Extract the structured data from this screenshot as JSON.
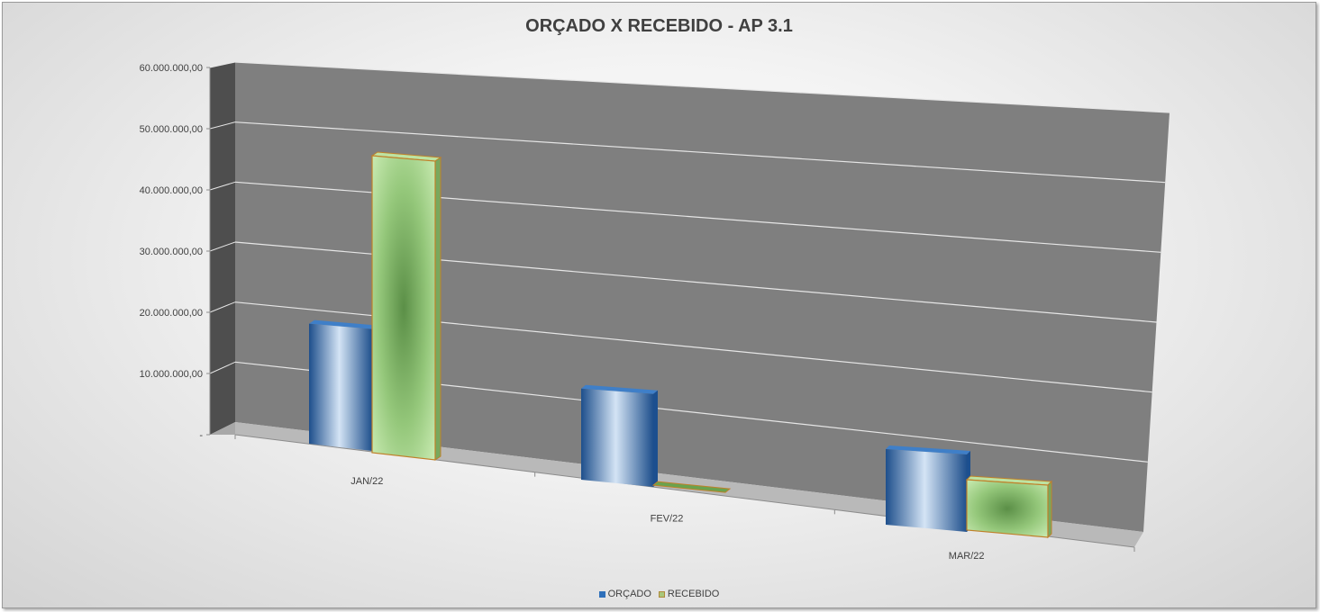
{
  "chart_data": {
    "type": "bar",
    "title": "ORÇADO X RECEBIDO - AP 3.1",
    "categories": [
      "JAN/22",
      "FEV/22",
      "MAR/22"
    ],
    "series": [
      {
        "name": "ORÇADO",
        "values": [
          20000000,
          16500000,
          15000000
        ],
        "color": "#2e6fba"
      },
      {
        "name": "RECEBIDO",
        "values": [
          49500000,
          300000,
          10000000
        ],
        "color": "#a9d58c",
        "border": "#c0802a"
      }
    ],
    "yticks": [
      "-",
      "10.000.000,00",
      "20.000.000,00",
      "30.000.000,00",
      "40.000.000,00",
      "50.000.000,00",
      "60.000.000,00"
    ],
    "ylim": [
      0,
      60000000
    ],
    "xlabel": "",
    "ylabel": "",
    "grid": true,
    "legend": "bottom",
    "view": "3d-perspective"
  }
}
